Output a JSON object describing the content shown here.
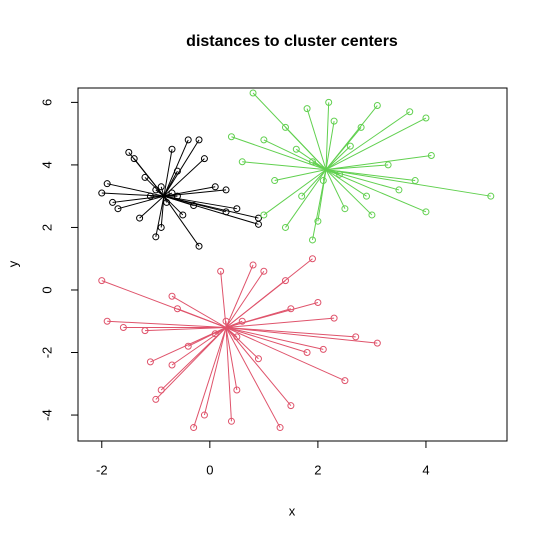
{
  "chart_data": {
    "type": "scatter",
    "title": "distances to cluster centers",
    "x_label": "x",
    "y_label": "y",
    "xlim": [
      -2.44,
      5.5
    ],
    "ylim": [
      -4.83,
      6.46
    ],
    "xticks": [
      -2,
      0,
      2,
      4
    ],
    "yticks": [
      -4,
      -2,
      0,
      2,
      4,
      6
    ],
    "series": [
      {
        "color": "#000000",
        "center": [
          -0.85,
          3.0
        ],
        "x": [
          -2.0,
          -1.9,
          -1.8,
          -1.5,
          -1.4,
          -1.3,
          -1.2,
          -1.0,
          -0.9,
          -0.7,
          -0.6,
          -0.5,
          -0.4,
          -0.3,
          -0.2,
          0.1,
          0.3,
          0.5,
          0.9,
          0.9,
          -0.2,
          -0.1,
          -1.7,
          0.3,
          -1.1,
          -0.7,
          -0.8,
          -1.0,
          -0.6,
          -0.9
        ],
        "y": [
          3.1,
          3.4,
          2.8,
          4.4,
          4.2,
          2.3,
          3.6,
          1.7,
          2.0,
          4.5,
          3.8,
          2.4,
          4.8,
          2.7,
          4.8,
          3.3,
          2.5,
          2.6,
          2.3,
          2.1,
          1.4,
          4.2,
          2.6,
          3.2,
          3.0,
          3.1,
          2.8,
          3.2,
          3.0,
          3.3
        ]
      },
      {
        "color": "#DF536B",
        "center": [
          0.3,
          -1.2
        ],
        "x": [
          -2.0,
          -1.9,
          -1.6,
          -1.2,
          -1.1,
          -1.0,
          -0.9,
          -0.7,
          -0.7,
          -0.6,
          -0.4,
          -0.3,
          -0.1,
          0.2,
          0.4,
          0.5,
          0.8,
          0.9,
          1.0,
          1.3,
          1.4,
          1.5,
          1.5,
          1.8,
          1.9,
          2.0,
          2.1,
          2.3,
          2.5,
          2.7,
          3.1,
          0.6,
          0.1,
          0.3,
          0.5
        ],
        "y": [
          0.3,
          -1.0,
          -1.2,
          -1.3,
          -2.3,
          -3.5,
          -3.2,
          -0.2,
          -2.4,
          -0.6,
          -1.8,
          -4.4,
          -4.0,
          0.6,
          -4.2,
          -3.2,
          0.8,
          -2.2,
          0.6,
          -4.4,
          0.3,
          -0.6,
          -3.7,
          -2.0,
          1.0,
          -0.4,
          -1.9,
          -0.9,
          -2.9,
          -1.5,
          -1.7,
          -1.0,
          -1.4,
          -1.0,
          -1.5
        ]
      },
      {
        "color": "#61D04F",
        "center": [
          2.15,
          3.85
        ],
        "x": [
          0.4,
          0.6,
          0.8,
          1.0,
          1.0,
          1.2,
          1.4,
          1.4,
          1.6,
          1.7,
          1.8,
          1.9,
          2.0,
          2.2,
          2.3,
          2.5,
          2.6,
          2.8,
          2.9,
          3.0,
          3.1,
          3.3,
          3.5,
          3.7,
          3.8,
          4.0,
          4.0,
          4.1,
          5.2,
          2.4,
          1.9,
          2.1
        ],
        "y": [
          4.9,
          4.1,
          6.3,
          4.8,
          2.4,
          3.5,
          5.2,
          2.0,
          4.5,
          3.0,
          5.8,
          1.6,
          2.2,
          6.0,
          5.4,
          2.6,
          4.6,
          5.2,
          3.0,
          2.4,
          5.9,
          4.0,
          3.2,
          5.7,
          3.5,
          5.5,
          2.5,
          4.3,
          3.0,
          3.7,
          4.1,
          3.5
        ]
      }
    ]
  }
}
